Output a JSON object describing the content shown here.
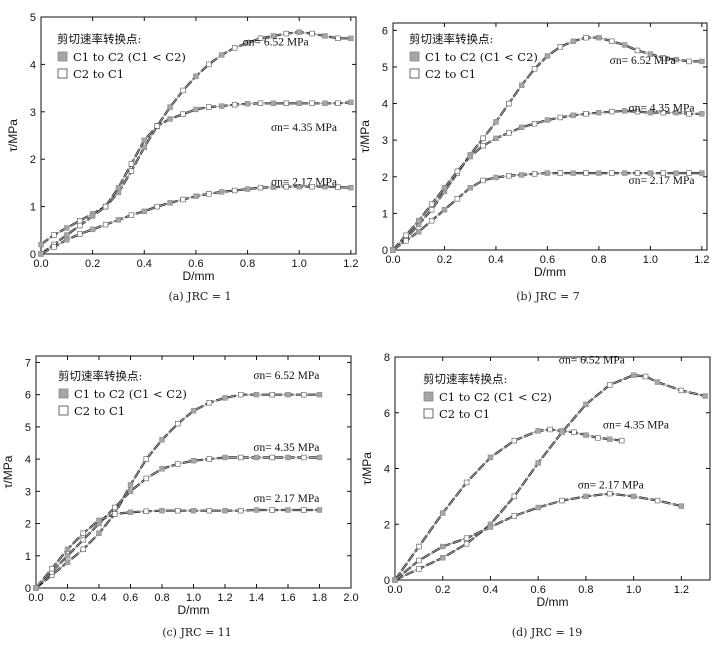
{
  "figure": {
    "legend_title": "剪切速率转换点:",
    "legend_items": [
      {
        "label": "C1 to C2 (C1 < C2)",
        "marker": "filled-gray-square"
      },
      {
        "label": "C2 to C1",
        "marker": "open-square"
      }
    ],
    "colors": {
      "curve": "#111111",
      "marker_filled": "#a6a6a6",
      "marker_open": "#ffffff"
    }
  },
  "chart_data": [
    {
      "type": "line",
      "caption": "(a) JRC = 1",
      "xlabel": "D/mm",
      "ylabel": "τ/MPa",
      "xlim": [
        0,
        1.22
      ],
      "ylim": [
        0,
        5
      ],
      "xticks": [
        "0.0",
        "0.2",
        "0.4",
        "0.6",
        "0.8",
        "1.0",
        "1.2"
      ],
      "yticks": [
        "0",
        "1",
        "2",
        "3",
        "4",
        "5"
      ],
      "legend": "top-left",
      "series": [
        {
          "name": "σn = 6.52 MPa",
          "x": [
            0,
            0.05,
            0.1,
            0.15,
            0.2,
            0.25,
            0.3,
            0.35,
            0.4,
            0.45,
            0.5,
            0.55,
            0.6,
            0.65,
            0.7,
            0.75,
            0.8,
            0.85,
            0.9,
            0.95,
            1.0,
            1.05,
            1.1,
            1.15,
            1.2
          ],
          "y": [
            0.2,
            0.4,
            0.55,
            0.7,
            0.85,
            1.0,
            1.3,
            1.75,
            2.25,
            2.7,
            3.1,
            3.45,
            3.75,
            4.0,
            4.2,
            4.35,
            4.45,
            4.55,
            4.6,
            4.65,
            4.68,
            4.65,
            4.6,
            4.55,
            4.55
          ]
        },
        {
          "name": "σn = 4.35 MPa",
          "x": [
            0,
            0.05,
            0.1,
            0.15,
            0.2,
            0.25,
            0.3,
            0.35,
            0.4,
            0.45,
            0.5,
            0.55,
            0.6,
            0.65,
            0.7,
            0.75,
            0.8,
            0.85,
            0.9,
            0.95,
            1.0,
            1.05,
            1.1,
            1.15,
            1.2
          ],
          "y": [
            0,
            0.2,
            0.4,
            0.6,
            0.8,
            1.0,
            1.4,
            1.9,
            2.4,
            2.7,
            2.85,
            2.95,
            3.05,
            3.1,
            3.12,
            3.15,
            3.17,
            3.18,
            3.18,
            3.18,
            3.18,
            3.18,
            3.18,
            3.18,
            3.2
          ]
        },
        {
          "name": "σn = 2.17 MPa",
          "x": [
            0,
            0.05,
            0.1,
            0.15,
            0.2,
            0.25,
            0.3,
            0.35,
            0.4,
            0.45,
            0.5,
            0.55,
            0.6,
            0.65,
            0.7,
            0.75,
            0.8,
            0.85,
            0.9,
            0.95,
            1.0,
            1.05,
            1.1,
            1.15,
            1.2
          ],
          "y": [
            0,
            0.15,
            0.3,
            0.42,
            0.52,
            0.62,
            0.72,
            0.82,
            0.9,
            1.0,
            1.08,
            1.15,
            1.22,
            1.27,
            1.31,
            1.34,
            1.37,
            1.4,
            1.41,
            1.42,
            1.42,
            1.42,
            1.42,
            1.41,
            1.4
          ]
        }
      ],
      "annotations": [
        "σn= 6.52 MPa",
        "σn= 4.35 MPa",
        "σn= 2.17 MPa"
      ]
    },
    {
      "type": "line",
      "caption": "(b) JRC = 7",
      "xlabel": "D/mm",
      "ylabel": "τ/MPa",
      "xlim": [
        0,
        1.22
      ],
      "ylim": [
        0,
        6.2
      ],
      "xticks": [
        "0.0",
        "0.2",
        "0.4",
        "0.6",
        "0.8",
        "1.0",
        "1.2"
      ],
      "yticks": [
        "0",
        "1",
        "2",
        "3",
        "4",
        "5",
        "6"
      ],
      "legend": "top-left",
      "series": [
        {
          "name": "σn = 6.52 MPa",
          "x": [
            0,
            0.05,
            0.1,
            0.15,
            0.2,
            0.25,
            0.3,
            0.35,
            0.4,
            0.45,
            0.5,
            0.55,
            0.6,
            0.65,
            0.7,
            0.75,
            0.8,
            0.85,
            0.9,
            0.95,
            1.0,
            1.05,
            1.1,
            1.15,
            1.2
          ],
          "y": [
            0,
            0.3,
            0.7,
            1.1,
            1.6,
            2.1,
            2.6,
            3.05,
            3.5,
            4.0,
            4.5,
            4.95,
            5.3,
            5.55,
            5.7,
            5.8,
            5.8,
            5.7,
            5.6,
            5.45,
            5.35,
            5.25,
            5.2,
            5.15,
            5.15
          ]
        },
        {
          "name": "σn = 4.35 MPa",
          "x": [
            0,
            0.05,
            0.1,
            0.15,
            0.2,
            0.25,
            0.3,
            0.35,
            0.4,
            0.45,
            0.5,
            0.55,
            0.6,
            0.65,
            0.7,
            0.75,
            0.8,
            0.85,
            0.9,
            0.95,
            1.0,
            1.05,
            1.1,
            1.15,
            1.2
          ],
          "y": [
            0,
            0.4,
            0.8,
            1.25,
            1.7,
            2.15,
            2.55,
            2.85,
            3.05,
            3.2,
            3.35,
            3.45,
            3.55,
            3.62,
            3.68,
            3.72,
            3.75,
            3.78,
            3.8,
            3.78,
            3.75,
            3.75,
            3.75,
            3.72,
            3.72
          ]
        },
        {
          "name": "σn = 2.17 MPa",
          "x": [
            0,
            0.05,
            0.1,
            0.15,
            0.2,
            0.25,
            0.3,
            0.35,
            0.4,
            0.45,
            0.5,
            0.55,
            0.6,
            0.65,
            0.7,
            0.75,
            0.8,
            0.85,
            0.9,
            0.95,
            1.0,
            1.05,
            1.1,
            1.15,
            1.2
          ],
          "y": [
            0,
            0.25,
            0.5,
            0.8,
            1.1,
            1.4,
            1.7,
            1.9,
            1.98,
            2.03,
            2.05,
            2.08,
            2.1,
            2.1,
            2.1,
            2.1,
            2.1,
            2.1,
            2.1,
            2.1,
            2.1,
            2.1,
            2.1,
            2.1,
            2.1
          ]
        }
      ],
      "annotations": [
        "σn= 6.52 MPa",
        "σn= 4.35 MPa",
        "σn= 2.17 MPa"
      ]
    },
    {
      "type": "line",
      "caption": "(c) JRC = 11",
      "xlabel": "D/mm",
      "ylabel": "τ/MPa",
      "xlim": [
        0,
        2.0
      ],
      "ylim": [
        0,
        7.2
      ],
      "xticks": [
        "0.0",
        "0.2",
        "0.4",
        "0.6",
        "0.8",
        "1.0",
        "1.2",
        "1.4",
        "1.6",
        "1.8",
        "2.0"
      ],
      "yticks": [
        "0",
        "1",
        "2",
        "3",
        "4",
        "5",
        "6",
        "7"
      ],
      "legend": "top-left",
      "series": [
        {
          "name": "σn = 6.52 MPa",
          "x": [
            0,
            0.1,
            0.2,
            0.3,
            0.4,
            0.5,
            0.6,
            0.7,
            0.8,
            0.9,
            1.0,
            1.1,
            1.2,
            1.3,
            1.4,
            1.5,
            1.6,
            1.7,
            1.8
          ],
          "y": [
            0,
            0.4,
            0.8,
            1.2,
            1.7,
            2.3,
            3.2,
            4.0,
            4.6,
            5.1,
            5.5,
            5.75,
            5.9,
            6.0,
            6.0,
            6.0,
            6.0,
            6.0,
            6.0
          ]
        },
        {
          "name": "σn = 4.35 MPa",
          "x": [
            0,
            0.1,
            0.2,
            0.3,
            0.4,
            0.5,
            0.6,
            0.7,
            0.8,
            0.9,
            1.0,
            1.1,
            1.2,
            1.3,
            1.4,
            1.5,
            1.6,
            1.7,
            1.8
          ],
          "y": [
            0,
            0.5,
            1.0,
            1.5,
            2.0,
            2.5,
            3.0,
            3.4,
            3.7,
            3.85,
            3.95,
            4.0,
            4.05,
            4.05,
            4.05,
            4.05,
            4.05,
            4.05,
            4.05
          ]
        },
        {
          "name": "σn = 2.17 MPa",
          "x": [
            0,
            0.1,
            0.2,
            0.3,
            0.4,
            0.5,
            0.6,
            0.7,
            0.8,
            0.9,
            1.0,
            1.1,
            1.2,
            1.3,
            1.4,
            1.5,
            1.6,
            1.7,
            1.8
          ],
          "y": [
            0,
            0.6,
            1.2,
            1.7,
            2.1,
            2.3,
            2.35,
            2.38,
            2.4,
            2.4,
            2.4,
            2.4,
            2.4,
            2.4,
            2.42,
            2.42,
            2.42,
            2.42,
            2.42
          ]
        }
      ],
      "annotations": [
        "σn= 6.52 MPa",
        "σn= 4.35 MPa",
        "σn= 2.17 MPa"
      ]
    },
    {
      "type": "line",
      "caption": "(d) JRC = 19",
      "xlabel": "D/mm",
      "ylabel": "τ/MPa",
      "xlim": [
        0,
        1.32
      ],
      "ylim": [
        0,
        8
      ],
      "xticks": [
        "0.0",
        "0.2",
        "0.4",
        "0.6",
        "0.8",
        "1.0",
        "1.2"
      ],
      "yticks": [
        "0",
        "2",
        "4",
        "6",
        "8"
      ],
      "legend": "top-left",
      "series": [
        {
          "name": "σn = 6.52 MPa",
          "x": [
            0,
            0.1,
            0.2,
            0.3,
            0.4,
            0.5,
            0.6,
            0.7,
            0.8,
            0.9,
            1.0,
            1.05,
            1.1,
            1.2,
            1.3
          ],
          "y": [
            0,
            0.4,
            0.8,
            1.3,
            2.0,
            3.0,
            4.2,
            5.3,
            6.3,
            7.0,
            7.35,
            7.3,
            7.1,
            6.8,
            6.6
          ]
        },
        {
          "name": "σn = 4.35 MPa",
          "x": [
            0,
            0.1,
            0.2,
            0.3,
            0.4,
            0.5,
            0.6,
            0.65,
            0.7,
            0.75,
            0.8,
            0.85,
            0.9,
            0.95
          ],
          "y": [
            0,
            1.2,
            2.4,
            3.5,
            4.4,
            5.0,
            5.35,
            5.4,
            5.35,
            5.3,
            5.2,
            5.1,
            5.05,
            5.0
          ]
        },
        {
          "name": "σn = 2.17 MPa",
          "x": [
            0,
            0.1,
            0.2,
            0.3,
            0.4,
            0.5,
            0.6,
            0.7,
            0.8,
            0.9,
            1.0,
            1.1,
            1.2
          ],
          "y": [
            0,
            0.7,
            1.2,
            1.5,
            1.9,
            2.3,
            2.6,
            2.85,
            3.0,
            3.1,
            3.0,
            2.85,
            2.65
          ]
        }
      ],
      "annotations": [
        "σn= 6.52 MPa",
        "σn= 4.35 MPa",
        "σn= 2.17 MPa"
      ]
    }
  ]
}
